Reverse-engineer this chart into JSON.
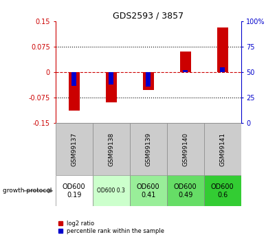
{
  "title": "GDS2593 / 3857",
  "samples": [
    "GSM99137",
    "GSM99138",
    "GSM99139",
    "GSM99140",
    "GSM99141"
  ],
  "log2_ratio": [
    -0.112,
    -0.088,
    -0.052,
    0.062,
    0.132
  ],
  "percentile_rank": [
    37,
    38,
    36,
    52,
    55
  ],
  "ylim": [
    -0.15,
    0.15
  ],
  "y2lim": [
    0,
    100
  ],
  "yticks": [
    -0.15,
    -0.075,
    0,
    0.075,
    0.15
  ],
  "y2ticks": [
    0,
    25,
    50,
    75,
    100
  ],
  "hlines": [
    0.075,
    -0.075
  ],
  "bar_color_red": "#cc0000",
  "bar_color_blue": "#0000cc",
  "zero_line_color": "#cc0000",
  "hline_color": "#000000",
  "sample_bg": "#cccccc",
  "protocol_colors": [
    "#ffffff",
    "#ccffcc",
    "#99ee99",
    "#66dd66",
    "#33cc33"
  ],
  "protocol_labels": [
    "OD600\n0.19",
    "OD600 0.3",
    "OD600\n0.41",
    "OD600\n0.49",
    "OD600\n0.6"
  ],
  "protocol_fontsizes": [
    7,
    5.5,
    7,
    7,
    7
  ],
  "growth_protocol_label": "growth protocol",
  "legend_red_label": "log2 ratio",
  "legend_blue_label": "percentile rank within the sample",
  "bar_width": 0.3,
  "blue_bar_width": 0.12
}
